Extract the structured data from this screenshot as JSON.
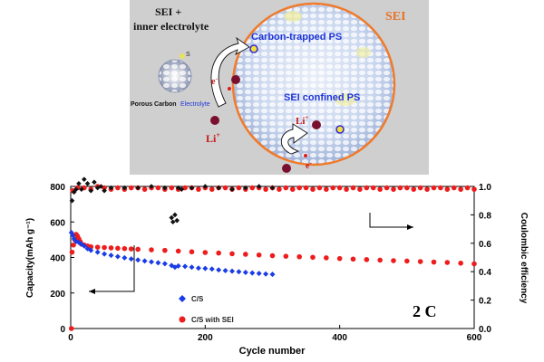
{
  "schematic": {
    "sei_label": "SEI",
    "sei_inner_title_1": "SEI +",
    "sei_inner_title_2": "inner electrolyte",
    "carbon_trapped_label": "Carbon-trapped PS",
    "sei_confined_label": "SEI confined PS",
    "sulfur_label": "S",
    "porous_carbon_label": "Porous Carbon",
    "electrolyte_label": "Electrolyte",
    "li_label_left": "Li",
    "li_label_inner": "Li",
    "li_sup": "+",
    "electron_label": "e",
    "electron_sup": "-",
    "colors": {
      "panel": "#cfcfcf",
      "sei_ring": "#f07a2a",
      "sei_text": "#e8742a",
      "ps_text": "#1f35d8",
      "li_dot": "#7a1030",
      "li_text": "#c81818"
    }
  },
  "chart_data": {
    "type": "scatter",
    "xlabel": "Cycle number",
    "ylabel": "Capacity(mAh g⁻¹)",
    "y2label": "Coulombic efficiency",
    "xlim": [
      0,
      600
    ],
    "ylim": [
      0,
      800
    ],
    "y2lim": [
      0,
      1.0
    ],
    "xticks": [
      "0",
      "200",
      "400",
      "600"
    ],
    "yticks": [
      "0",
      "200",
      "400",
      "600",
      "800"
    ],
    "y2ticks": [
      "0.0",
      "0.2",
      "0.4",
      "0.6",
      "0.8",
      "1.0"
    ],
    "rate_label": "2 C",
    "legend": {
      "placement": "bottom-center"
    },
    "series": [
      {
        "name": "C/S",
        "color": "#1a3ce6",
        "axis": "left",
        "x": [
          1,
          3,
          5,
          8,
          12,
          16,
          20,
          25,
          30,
          40,
          50,
          60,
          70,
          80,
          90,
          100,
          110,
          120,
          130,
          140,
          150,
          155,
          160,
          170,
          180,
          190,
          200,
          210,
          220,
          230,
          240,
          250,
          260,
          270,
          280,
          290,
          300
        ],
        "y": [
          540,
          525,
          505,
          490,
          485,
          475,
          465,
          450,
          440,
          430,
          420,
          412,
          405,
          398,
          392,
          386,
          380,
          375,
          370,
          365,
          355,
          345,
          352,
          350,
          345,
          340,
          338,
          335,
          330,
          326,
          323,
          320,
          316,
          313,
          310,
          307,
          305
        ]
      },
      {
        "name": "C/S with SEI",
        "color": "#ee1c1c",
        "axis": "left",
        "x": [
          1,
          2,
          4,
          6,
          8,
          10,
          12,
          14,
          16,
          20,
          25,
          30,
          40,
          50,
          60,
          70,
          80,
          90,
          100,
          120,
          140,
          160,
          180,
          200,
          220,
          240,
          260,
          280,
          300,
          320,
          340,
          360,
          380,
          400,
          420,
          440,
          460,
          480,
          500,
          520,
          540,
          560,
          580,
          600
        ],
        "y": [
          0,
          430,
          470,
          500,
          530,
          520,
          505,
          490,
          475,
          470,
          465,
          460,
          458,
          456,
          454,
          452,
          450,
          448,
          446,
          443,
          440,
          436,
          432,
          428,
          425,
          421,
          418,
          414,
          410,
          407,
          404,
          401,
          398,
          394,
          391,
          388,
          385,
          382,
          380,
          377,
          374,
          372,
          368,
          364
        ]
      },
      {
        "name": "Coulombic efficiency C/S",
        "color": "#111111",
        "axis": "right",
        "x": [
          2,
          5,
          8,
          12,
          16,
          20,
          25,
          30,
          35,
          40,
          45,
          50,
          60,
          80,
          100,
          120,
          140,
          150,
          152,
          155,
          158,
          160,
          165,
          180,
          200,
          220,
          240,
          260,
          280,
          300
        ],
        "y": [
          0.9,
          0.96,
          0.98,
          1.02,
          0.98,
          1.05,
          1.02,
          0.97,
          1.03,
          0.99,
          1.0,
          0.97,
          0.99,
          0.99,
          0.99,
          1.0,
          0.99,
          0.78,
          0.75,
          0.8,
          0.76,
          0.99,
          0.98,
          0.99,
          1.0,
          0.99,
          0.98,
          0.99,
          1.0,
          0.99
        ]
      },
      {
        "name": "Coulombic efficiency C/S with SEI",
        "color": "#ee1c1c",
        "axis": "right",
        "x": [
          3,
          10,
          20,
          30,
          40,
          50,
          60,
          70,
          80,
          90,
          100,
          110,
          120,
          130,
          140,
          150,
          160,
          170,
          180,
          190,
          200,
          210,
          220,
          230,
          240,
          250,
          260,
          270,
          280,
          290,
          300,
          310,
          320,
          330,
          340,
          350,
          360,
          370,
          380,
          390,
          400,
          410,
          420,
          430,
          440,
          450,
          460,
          470,
          480,
          490,
          500,
          510,
          520,
          530,
          540,
          550,
          560,
          570,
          580,
          590,
          600
        ],
        "y": [
          0.97,
          0.99,
          0.99,
          0.98,
          1.0,
          0.99,
          0.98,
          0.99,
          0.98,
          0.99,
          0.99,
          0.98,
          0.99,
          0.99,
          0.98,
          0.99,
          0.98,
          0.99,
          0.99,
          0.98,
          0.99,
          0.98,
          0.99,
          0.99,
          0.98,
          0.99,
          0.98,
          0.99,
          0.99,
          0.98,
          0.99,
          0.98,
          0.99,
          0.98,
          0.99,
          0.99,
          0.98,
          0.99,
          0.98,
          0.99,
          0.99,
          0.98,
          0.99,
          0.98,
          0.99,
          0.99,
          0.98,
          0.99,
          0.98,
          0.99,
          0.99,
          0.98,
          0.99,
          0.98,
          0.99,
          0.99,
          0.98,
          0.99,
          0.98,
          0.99,
          0.98
        ]
      }
    ]
  }
}
